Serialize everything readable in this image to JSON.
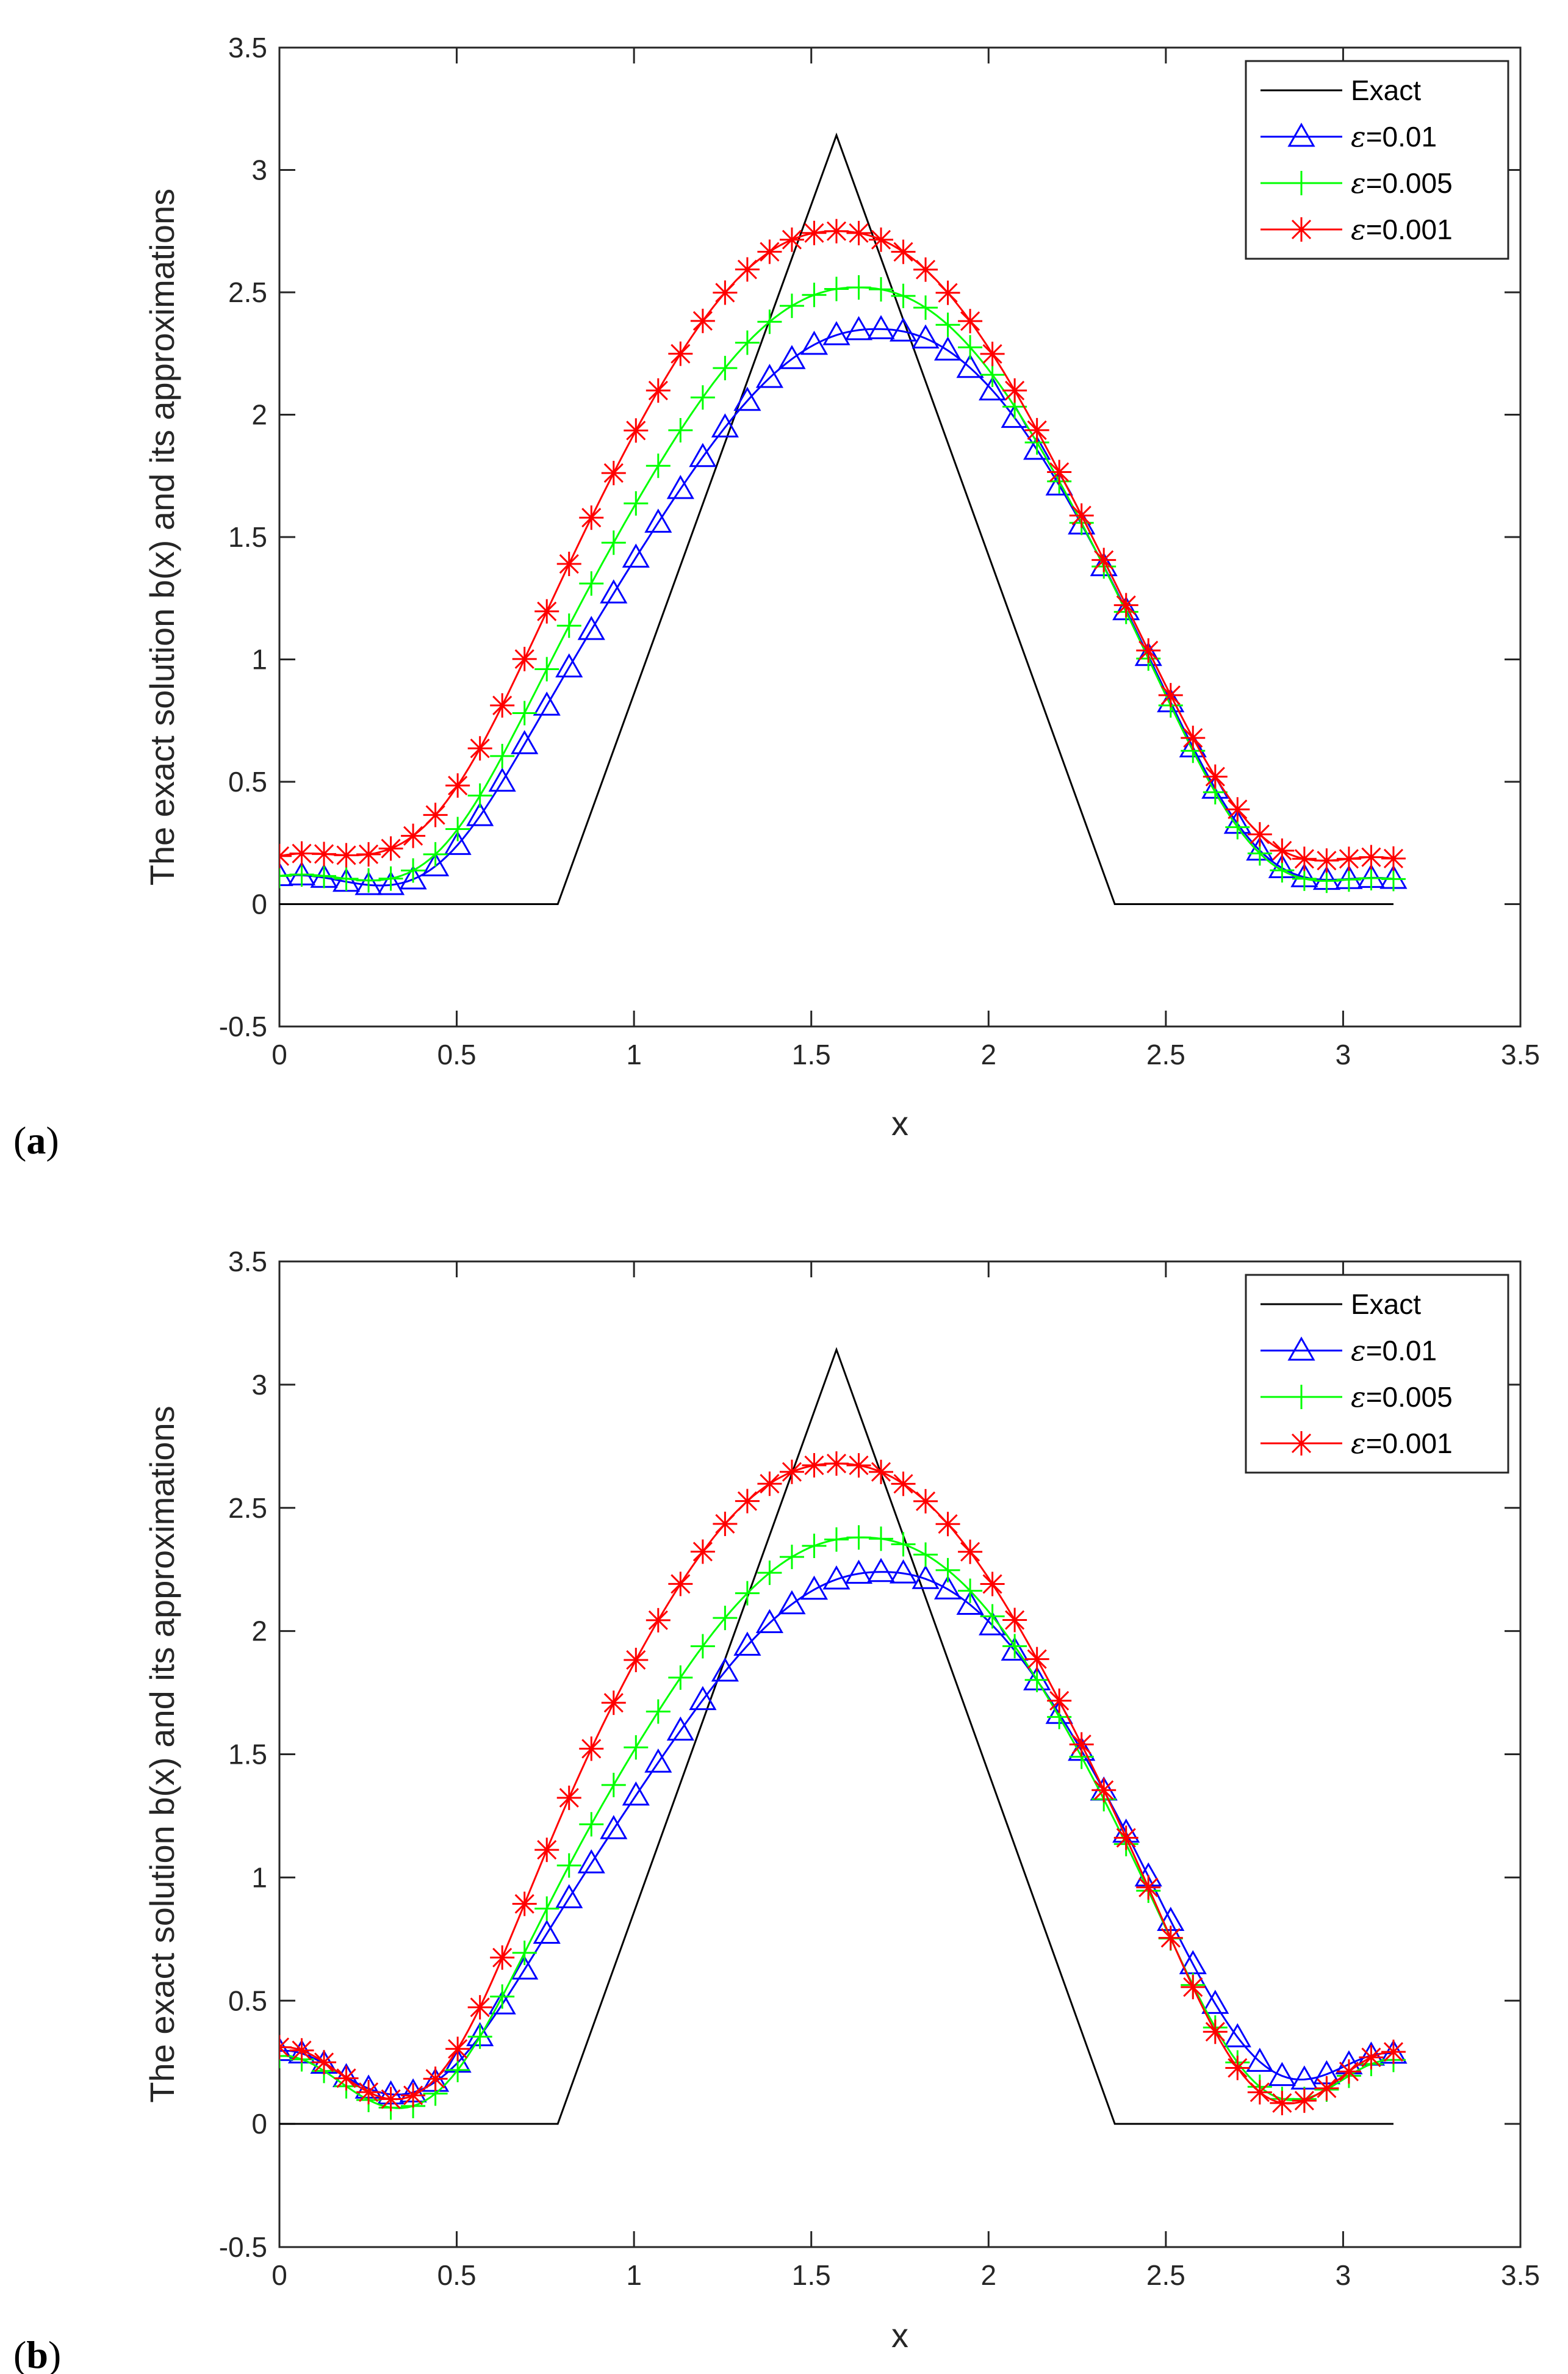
{
  "chart_data": [
    {
      "panel_label": "(a)",
      "type": "line",
      "title": "",
      "xlabel": "x",
      "ylabel": "The exact solution b(x) and its approximations",
      "xlim": [
        0,
        3.5
      ],
      "ylim": [
        -0.5,
        3.5
      ],
      "xticks": [
        0,
        0.5,
        1,
        1.5,
        2,
        2.5,
        3,
        3.5
      ],
      "xtick_labels": [
        "0",
        "0.5",
        "1",
        "1.5",
        "2",
        "2.5",
        "3",
        "3.5"
      ],
      "yticks": [
        -0.5,
        0,
        0.5,
        1,
        1.5,
        2,
        2.5,
        3,
        3.5
      ],
      "ytick_labels": [
        "-0.5",
        "0",
        "0.5",
        "1",
        "1.5",
        "2",
        "2.5",
        "3",
        "3.5"
      ],
      "legend_position": "top-right",
      "series": [
        {
          "name": "Exact",
          "eps_prefix": "",
          "eps_value": "Exact",
          "color": "#000000",
          "marker": "none",
          "x": [
            0,
            0.785,
            1.571,
            2.356,
            3.142
          ],
          "y": [
            0,
            0,
            3.142,
            0,
            0
          ]
        },
        {
          "name": "ε=0.01",
          "eps_prefix": "ε",
          "eps_value": "=0.01",
          "color": "#0000ff",
          "marker": "triangle",
          "shift": 0.115,
          "amp": 2.38,
          "c": 0.075,
          "k": 0.225,
          "m": 0.03
        },
        {
          "name": "ε=0.005",
          "eps_prefix": "ε",
          "eps_value": "=0.005",
          "color": "#00ff00",
          "marker": "plus",
          "shift": 0.06,
          "amp": 2.55,
          "c": 0.07,
          "k": 0.24,
          "m": 0.03
        },
        {
          "name": "ε=0.001",
          "eps_prefix": "ε",
          "eps_value": "=0.001",
          "color": "#ff0000",
          "marker": "asterisk",
          "shift": 0.0,
          "amp": 2.75,
          "c": 0.11,
          "k": 0.19,
          "m": 0.0
        }
      ]
    },
    {
      "panel_label": "(b)",
      "type": "line",
      "title": "",
      "xlabel": "x",
      "ylabel": "The exact solution b(x) and its approximations",
      "xlim": [
        0,
        3.5
      ],
      "ylim": [
        -0.5,
        3.5
      ],
      "xticks": [
        0,
        0.5,
        1,
        1.5,
        2,
        2.5,
        3,
        3.5
      ],
      "xtick_labels": [
        "0",
        "0.5",
        "1",
        "1.5",
        "2",
        "2.5",
        "3",
        "3.5"
      ],
      "yticks": [
        -0.5,
        0,
        0.5,
        1,
        1.5,
        2,
        2.5,
        3,
        3.5
      ],
      "ytick_labels": [
        "-0.5",
        "0",
        "0.5",
        "1",
        "1.5",
        "2",
        "2.5",
        "3",
        "3.5"
      ],
      "legend_position": "top-right",
      "series": [
        {
          "name": "Exact",
          "eps_prefix": "",
          "eps_value": "Exact",
          "color": "#000000",
          "marker": "none",
          "x": [
            0,
            0.785,
            1.571,
            2.356,
            3.142
          ],
          "y": [
            0,
            0,
            3.142,
            0,
            0
          ]
        },
        {
          "name": "ε=0.01",
          "eps_prefix": "ε",
          "eps_value": "=0.01",
          "color": "#0000ff",
          "marker": "triangle",
          "shift": 0.13,
          "amp": 2.24,
          "c": 0.23,
          "k": 0.21,
          "m": 0.0
        },
        {
          "name": "ε=0.005",
          "eps_prefix": "ε",
          "eps_value": "=0.005",
          "color": "#00ff00",
          "marker": "plus",
          "shift": 0.07,
          "amp": 2.4,
          "c": 0.23,
          "k": 0.3,
          "m": 0.02
        },
        {
          "name": "ε=0.001",
          "eps_prefix": "ε",
          "eps_value": "=0.001",
          "color": "#ff0000",
          "marker": "asterisk",
          "shift": 0.0,
          "amp": 2.68,
          "c": 0.24,
          "k": 0.36,
          "m": 0.0
        }
      ]
    }
  ]
}
